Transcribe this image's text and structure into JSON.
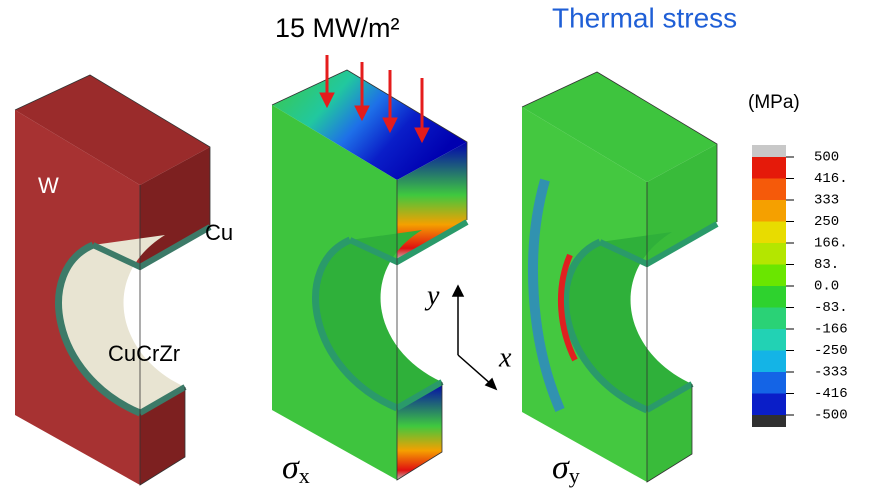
{
  "header": {
    "title": "Thermal stress",
    "heat_flux": "15 MW/m²",
    "unit": "(MPa)"
  },
  "materials": [
    "W",
    "Cu",
    "CuCrZr"
  ],
  "axes": {
    "y": "y",
    "x": "x"
  },
  "panels": [
    {
      "symbol": "σ",
      "sub": "x"
    },
    {
      "symbol": "σ",
      "sub": "y"
    }
  ],
  "legend": [
    "500",
    "416.",
    "333",
    "250",
    "166.",
    "83.",
    "0.0",
    "-83.",
    "-166",
    "-250",
    "-333",
    "-416",
    "-500"
  ]
}
